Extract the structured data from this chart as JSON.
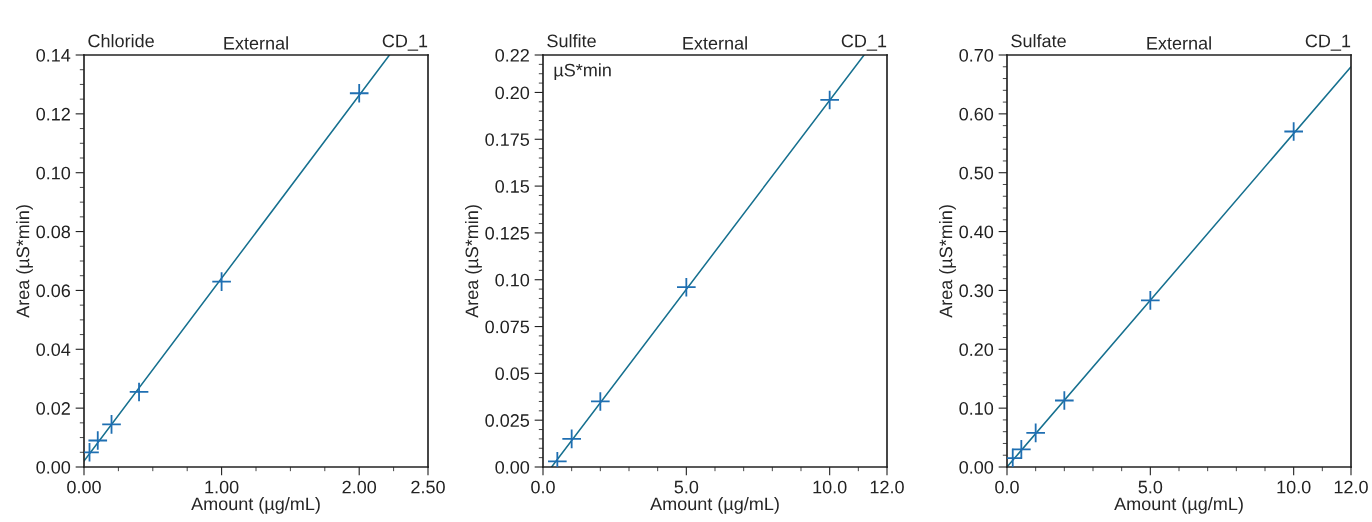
{
  "chart_data": [
    {
      "type": "scatter",
      "title": "External",
      "annotations": [
        "Chloride",
        "CD_1"
      ],
      "xlabel": "Amount (µg/mL)",
      "ylabel": "Area (µS*min)",
      "grid": false,
      "legend": false,
      "xlim": [
        0,
        2.5
      ],
      "xticks": [
        {
          "value": 0,
          "label": "0.00"
        },
        {
          "value": 1,
          "label": "1.00"
        },
        {
          "value": 2,
          "label": "2.00"
        },
        {
          "value": 2.5,
          "label": "2.50"
        }
      ],
      "ylim": [
        0,
        0.14
      ],
      "yticks": [
        {
          "value": 0,
          "label": "0.00"
        },
        {
          "value": 0.02,
          "label": "0.02"
        },
        {
          "value": 0.04,
          "label": "0.04"
        },
        {
          "value": 0.06,
          "label": "0.06"
        },
        {
          "value": 0.08,
          "label": "0.08"
        },
        {
          "value": 0.1,
          "label": "0.10"
        },
        {
          "value": 0.12,
          "label": "0.12"
        },
        {
          "value": 0.14,
          "label": "0.14"
        }
      ],
      "series": [
        {
          "marker": "cross",
          "color": "#1f6fb2",
          "x": [
            0.04,
            0.1,
            0.2,
            0.4,
            1.0,
            2.0
          ],
          "values": [
            0.005,
            0.009,
            0.0145,
            0.0255,
            0.063,
            0.127
          ]
        },
        {
          "type": "line",
          "marker": "none",
          "color": "#16708f",
          "x": [
            0,
            2.22
          ],
          "values": [
            0.002,
            0.14
          ]
        }
      ]
    },
    {
      "type": "scatter",
      "title": "External",
      "annotations": [
        "Sulfite",
        "CD_1",
        "µS*min"
      ],
      "xlabel": "Amount (µg/mL)",
      "ylabel": "Area (µS*min)",
      "grid": false,
      "legend": false,
      "xlim": [
        0,
        12
      ],
      "xticks": [
        {
          "value": 0,
          "label": "0.0"
        },
        {
          "value": 5,
          "label": "5.0"
        },
        {
          "value": 10,
          "label": "10.0"
        },
        {
          "value": 12,
          "label": "12.0"
        }
      ],
      "ylim": [
        0,
        0.22
      ],
      "yticks": [
        {
          "value": 0,
          "label": "0.00"
        },
        0.025,
        0.05,
        0.075,
        {
          "value": 0.1,
          "label": "0.10"
        },
        0.125,
        0.15,
        0.175,
        {
          "value": 0.2,
          "label": "0.20"
        },
        0.22
      ],
      "series": [
        {
          "marker": "cross",
          "color": "#1f6fb2",
          "x": [
            0.5,
            1,
            2,
            5,
            10
          ],
          "values": [
            0.003,
            0.015,
            0.035,
            0.096,
            0.196
          ]
        },
        {
          "type": "line",
          "marker": "none",
          "color": "#16708f",
          "x": [
            0.3,
            11.2
          ],
          "values": [
            0,
            0.22
          ]
        }
      ]
    },
    {
      "type": "scatter",
      "title": "External",
      "annotations": [
        "Sulfate",
        "CD_1"
      ],
      "xlabel": "Amount (µg/mL)",
      "ylabel": "Area (µS*min)",
      "grid": false,
      "legend": false,
      "xlim": [
        0,
        12
      ],
      "xticks": [
        {
          "value": 0,
          "label": "0.0"
        },
        {
          "value": 5,
          "label": "5.0"
        },
        {
          "value": 10,
          "label": "10.0"
        },
        {
          "value": 12,
          "label": "12.0"
        }
      ],
      "ylim": [
        0,
        0.7
      ],
      "yticks": [
        {
          "value": 0,
          "label": "0.00"
        },
        {
          "value": 0.1,
          "label": "0.10"
        },
        {
          "value": 0.2,
          "label": "0.20"
        },
        {
          "value": 0.3,
          "label": "0.30"
        },
        {
          "value": 0.4,
          "label": "0.40"
        },
        {
          "value": 0.5,
          "label": "0.50"
        },
        {
          "value": 0.6,
          "label": "0.60"
        },
        {
          "value": 0.7,
          "label": "0.70"
        }
      ],
      "series": [
        {
          "marker": "cross",
          "color": "#1f6fb2",
          "x": [
            0.2,
            0.5,
            1,
            2,
            5,
            10
          ],
          "values": [
            0.015,
            0.03,
            0.058,
            0.113,
            0.283,
            0.57
          ]
        },
        {
          "type": "line",
          "marker": "none",
          "color": "#16708f",
          "x": [
            0,
            12
          ],
          "values": [
            0,
            0.68
          ]
        }
      ]
    }
  ]
}
